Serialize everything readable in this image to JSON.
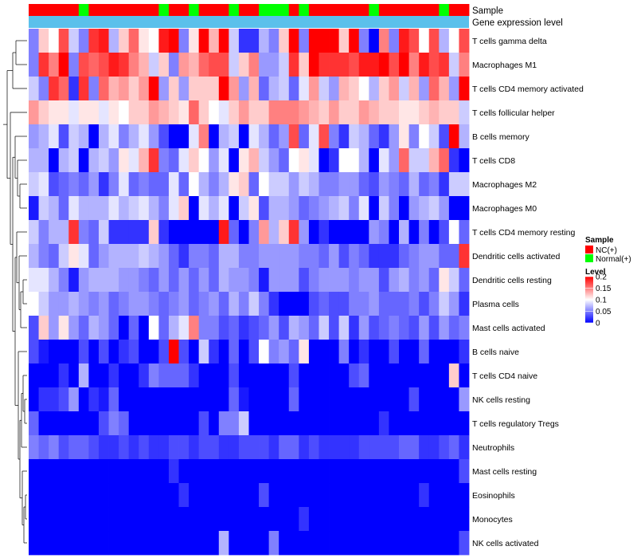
{
  "chart_data": {
    "type": "heatmap",
    "annotation_labels": {
      "sample": "Sample",
      "gene_expression": "Gene expression level"
    },
    "rows": [
      "T cells gamma delta",
      "Macrophages M1",
      "T cells CD4 memory activated",
      "T cells follicular helper",
      "B cells memory",
      "T cells CD8",
      "Macrophages M2",
      "Macrophages M0",
      "T cells CD4 memory resting",
      "Dendritic cells activated",
      "Dendritic cells resting",
      "Plasma cells",
      "Mast cells activated",
      "B cells naive",
      "T cells CD4 naive",
      "NK cells resting",
      "T cells regulatory  Tregs",
      "Neutrophils",
      "Mast cells resting",
      "Eosinophils",
      "Monocytes",
      "NK cells activated"
    ],
    "n_columns": 44,
    "sample_groups": [
      "NC",
      "NC",
      "NC",
      "NC",
      "NC",
      "Normal",
      "NC",
      "NC",
      "NC",
      "NC",
      "NC",
      "NC",
      "NC",
      "Normal",
      "NC",
      "NC",
      "Normal",
      "NC",
      "NC",
      "NC",
      "Normal",
      "NC",
      "NC",
      "Normal",
      "Normal",
      "Normal",
      "NC",
      "Normal",
      "NC",
      "NC",
      "NC",
      "NC",
      "NC",
      "NC",
      "Normal",
      "NC",
      "NC",
      "NC",
      "NC",
      "NC",
      "NC",
      "Normal",
      "NC",
      "NC"
    ],
    "legend": {
      "sample_title": "Sample",
      "sample_items": [
        {
          "label": "NC(+)",
          "color": "#ff0000"
        },
        {
          "label": "Normal(+)",
          "color": "#00ff00"
        }
      ],
      "level_title": "Level",
      "level_ticks": [
        {
          "label": "0.2",
          "value": 0.2
        },
        {
          "label": "0.15",
          "value": 0.15
        },
        {
          "label": "0.1",
          "value": 0.1
        },
        {
          "label": "0.05",
          "value": 0.05
        },
        {
          "label": "0",
          "value": 0
        }
      ]
    },
    "color_scale": {
      "low": "#0000ff",
      "mid": "#ffffff",
      "high": "#ff0000",
      "min": 0,
      "mid_value": 0.1,
      "max": 0.2
    },
    "annotation_colors": {
      "gene_expression": "#5bc0eb"
    },
    "values": [
      [
        0.05,
        0.12,
        0.1,
        0.17,
        0.08,
        0.05,
        0.18,
        0.19,
        0.07,
        0.12,
        0.16,
        0.11,
        0.1,
        0.19,
        0.2,
        0.05,
        0.11,
        0.2,
        0.13,
        0.2,
        0.08,
        0.02,
        0.02,
        0.07,
        0.05,
        0.12,
        0.2,
        0.05,
        0.2,
        0.2,
        0.2,
        0.12,
        0.2,
        0.05,
        0.0,
        0.15,
        0.05,
        0.19,
        0.17,
        0.1,
        0.17,
        0.07,
        0.1,
        0.17
      ],
      [
        0.05,
        0.18,
        0.15,
        0.2,
        0.05,
        0.17,
        0.16,
        0.17,
        0.19,
        0.18,
        0.15,
        0.13,
        0.08,
        0.12,
        0.05,
        0.14,
        0.13,
        0.16,
        0.17,
        0.17,
        0.08,
        0.12,
        0.15,
        0.06,
        0.06,
        0.08,
        0.18,
        0.12,
        0.2,
        0.18,
        0.18,
        0.18,
        0.17,
        0.19,
        0.19,
        0.2,
        0.17,
        0.2,
        0.15,
        0.19,
        0.17,
        0.18,
        0.08,
        0.15
      ],
      [
        0.08,
        0.05,
        0.18,
        0.16,
        0.02,
        0.18,
        0.05,
        0.16,
        0.13,
        0.14,
        0.12,
        0.14,
        0.2,
        0.06,
        0.12,
        0.06,
        0.12,
        0.12,
        0.12,
        0.2,
        0.14,
        0.06,
        0.13,
        0.04,
        0.07,
        0.08,
        0.04,
        0.09,
        0.14,
        0.08,
        0.06,
        0.13,
        0.12,
        0.1,
        0.07,
        0.12,
        0.14,
        0.08,
        0.13,
        0.06,
        0.16,
        0.13,
        0.06,
        0.2
      ],
      [
        0.14,
        0.12,
        0.11,
        0.11,
        0.09,
        0.11,
        0.11,
        0.09,
        0.11,
        0.1,
        0.12,
        0.12,
        0.14,
        0.13,
        0.12,
        0.11,
        0.16,
        0.12,
        0.1,
        0.09,
        0.12,
        0.14,
        0.12,
        0.12,
        0.15,
        0.15,
        0.15,
        0.14,
        0.13,
        0.12,
        0.14,
        0.12,
        0.12,
        0.14,
        0.13,
        0.12,
        0.12,
        0.11,
        0.11,
        0.12,
        0.13,
        0.12,
        0.12,
        0.08
      ],
      [
        0.06,
        0.07,
        0.09,
        0.03,
        0.08,
        0.07,
        0.0,
        0.07,
        0.09,
        0.05,
        0.07,
        0.09,
        0.06,
        0.03,
        0.0,
        0.0,
        0.09,
        0.15,
        0.0,
        0.07,
        0.08,
        0.0,
        0.09,
        0.07,
        0.04,
        0.06,
        0.17,
        0.04,
        0.09,
        0.17,
        0.05,
        0.02,
        0.08,
        0.07,
        0.04,
        0.02,
        0.06,
        0.11,
        0.05,
        0.1,
        0.08,
        0.03,
        0.2,
        0.07
      ],
      [
        0.07,
        0.07,
        0.0,
        0.07,
        0.08,
        0.0,
        0.07,
        0.08,
        0.06,
        0.11,
        0.09,
        0.13,
        0.18,
        0.05,
        0.04,
        0.09,
        0.12,
        0.1,
        0.06,
        0.09,
        0.0,
        0.11,
        0.13,
        0.08,
        0.06,
        0.04,
        0.1,
        0.11,
        0.09,
        0.0,
        0.02,
        0.1,
        0.1,
        0.07,
        0.0,
        0.09,
        0.06,
        0.16,
        0.08,
        0.08,
        0.13,
        0.16,
        0.02,
        0.0
      ],
      [
        0.08,
        0.09,
        0.03,
        0.04,
        0.05,
        0.04,
        0.06,
        0.02,
        0.05,
        0.09,
        0.04,
        0.05,
        0.04,
        0.04,
        0.09,
        0.04,
        0.1,
        0.07,
        0.05,
        0.07,
        0.11,
        0.12,
        0.04,
        0.1,
        0.08,
        0.08,
        0.06,
        0.08,
        0.07,
        0.05,
        0.05,
        0.06,
        0.06,
        0.04,
        0.03,
        0.06,
        0.05,
        0.04,
        0.07,
        0.04,
        0.05,
        0.02,
        0.08,
        0.08
      ],
      [
        0.01,
        0.08,
        0.07,
        0.04,
        0.09,
        0.07,
        0.07,
        0.07,
        0.09,
        0.07,
        0.08,
        0.09,
        0.07,
        0.05,
        0.09,
        0.12,
        0.0,
        0.09,
        0.07,
        0.09,
        0.0,
        0.08,
        0.11,
        0.03,
        0.07,
        0.07,
        0.06,
        0.04,
        0.05,
        0.06,
        0.07,
        0.08,
        0.05,
        0.09,
        0.0,
        0.08,
        0.05,
        0.0,
        0.06,
        0.07,
        0.08,
        0.06,
        0.0,
        0.0
      ],
      [
        0.08,
        0.05,
        0.07,
        0.07,
        0.18,
        0.05,
        0.04,
        0.08,
        0.02,
        0.02,
        0.02,
        0.02,
        0.12,
        0.02,
        0.0,
        0.0,
        0.0,
        0.0,
        0.0,
        0.19,
        0.04,
        0.0,
        0.05,
        0.14,
        0.07,
        0.12,
        0.18,
        0.06,
        0.0,
        0.02,
        0.0,
        0.0,
        0.0,
        0.0,
        0.06,
        0.05,
        0.0,
        0.07,
        0.0,
        0.05,
        0.0,
        0.03,
        0.1,
        0.04
      ],
      [
        0.07,
        0.05,
        0.04,
        0.08,
        0.11,
        0.09,
        0.04,
        0.06,
        0.07,
        0.07,
        0.07,
        0.08,
        0.07,
        0.06,
        0.04,
        0.02,
        0.05,
        0.05,
        0.04,
        0.07,
        0.07,
        0.05,
        0.05,
        0.06,
        0.06,
        0.06,
        0.06,
        0.05,
        0.05,
        0.04,
        0.06,
        0.03,
        0.05,
        0.04,
        0.02,
        0.02,
        0.02,
        0.04,
        0.05,
        0.06,
        0.06,
        0.04,
        0.04,
        0.18
      ],
      [
        0.09,
        0.09,
        0.07,
        0.05,
        0.01,
        0.06,
        0.07,
        0.07,
        0.07,
        0.06,
        0.06,
        0.05,
        0.04,
        0.06,
        0.04,
        0.06,
        0.04,
        0.06,
        0.04,
        0.07,
        0.06,
        0.06,
        0.05,
        0.01,
        0.06,
        0.06,
        0.06,
        0.03,
        0.05,
        0.06,
        0.06,
        0.06,
        0.05,
        0.06,
        0.06,
        0.03,
        0.06,
        0.07,
        0.05,
        0.06,
        0.04,
        0.11,
        0.08,
        0.04
      ],
      [
        0.1,
        0.08,
        0.06,
        0.06,
        0.07,
        0.06,
        0.05,
        0.06,
        0.04,
        0.05,
        0.06,
        0.06,
        0.05,
        0.04,
        0.05,
        0.06,
        0.04,
        0.05,
        0.06,
        0.04,
        0.07,
        0.05,
        0.08,
        0.05,
        0.02,
        0.0,
        0.0,
        0.0,
        0.03,
        0.04,
        0.03,
        0.03,
        0.05,
        0.05,
        0.06,
        0.04,
        0.04,
        0.04,
        0.05,
        0.03,
        0.05,
        0.08,
        0.06,
        0.02
      ],
      [
        0.03,
        0.12,
        0.06,
        0.11,
        0.06,
        0.04,
        0.07,
        0.06,
        0.04,
        0.0,
        0.04,
        0.0,
        0.1,
        0.04,
        0.07,
        0.09,
        0.15,
        0.05,
        0.05,
        0.03,
        0.04,
        0.02,
        0.03,
        0.04,
        0.06,
        0.03,
        0.07,
        0.06,
        0.04,
        0.08,
        0.03,
        0.08,
        0.02,
        0.06,
        0.03,
        0.04,
        0.05,
        0.04,
        0.03,
        0.06,
        0.03,
        0.06,
        0.04,
        0.05
      ],
      [
        0.03,
        0.01,
        0.0,
        0.0,
        0.0,
        0.03,
        0.0,
        0.03,
        0.0,
        0.02,
        0.03,
        0.0,
        0.0,
        0.03,
        0.2,
        0.03,
        0.0,
        0.08,
        0.02,
        0.0,
        0.04,
        0.0,
        0.03,
        0.1,
        0.05,
        0.06,
        0.04,
        0.11,
        0.0,
        0.0,
        0.0,
        0.05,
        0.0,
        0.02,
        0.0,
        0.0,
        0.03,
        0.0,
        0.0,
        0.04,
        0.0,
        0.0,
        0.0,
        0.02
      ],
      [
        0.0,
        0.0,
        0.0,
        0.02,
        0.0,
        0.07,
        0.0,
        0.0,
        0.02,
        0.0,
        0.0,
        0.02,
        0.05,
        0.04,
        0.04,
        0.04,
        0.02,
        0.0,
        0.0,
        0.0,
        0.03,
        0.0,
        0.0,
        0.0,
        0.0,
        0.0,
        0.03,
        0.0,
        0.0,
        0.0,
        0.0,
        0.0,
        0.03,
        0.04,
        0.0,
        0.0,
        0.0,
        0.0,
        0.0,
        0.0,
        0.0,
        0.0,
        0.12,
        0.0
      ],
      [
        0.0,
        0.02,
        0.02,
        0.03,
        0.06,
        0.0,
        0.02,
        0.01,
        0.04,
        0.0,
        0.0,
        0.0,
        0.0,
        0.0,
        0.0,
        0.0,
        0.0,
        0.0,
        0.0,
        0.0,
        0.04,
        0.01,
        0.0,
        0.0,
        0.0,
        0.0,
        0.04,
        0.0,
        0.0,
        0.0,
        0.0,
        0.0,
        0.0,
        0.0,
        0.0,
        0.0,
        0.0,
        0.0,
        0.03,
        0.0,
        0.0,
        0.0,
        0.0,
        0.06
      ],
      [
        0.04,
        0.0,
        0.0,
        0.0,
        0.0,
        0.0,
        0.0,
        0.03,
        0.05,
        0.04,
        0.0,
        0.0,
        0.0,
        0.0,
        0.0,
        0.0,
        0.0,
        0.03,
        0.0,
        0.05,
        0.05,
        0.08,
        0.0,
        0.0,
        0.0,
        0.0,
        0.0,
        0.0,
        0.0,
        0.0,
        0.0,
        0.0,
        0.0,
        0.0,
        0.0,
        0.02,
        0.0,
        0.0,
        0.0,
        0.0,
        0.0,
        0.0,
        0.0,
        0.0
      ],
      [
        0.05,
        0.04,
        0.05,
        0.03,
        0.04,
        0.04,
        0.03,
        0.02,
        0.02,
        0.03,
        0.02,
        0.03,
        0.02,
        0.02,
        0.03,
        0.03,
        0.02,
        0.03,
        0.03,
        0.02,
        0.02,
        0.03,
        0.03,
        0.03,
        0.02,
        0.04,
        0.04,
        0.02,
        0.03,
        0.02,
        0.02,
        0.02,
        0.02,
        0.03,
        0.03,
        0.03,
        0.03,
        0.04,
        0.04,
        0.02,
        0.02,
        0.03,
        0.04,
        0.02
      ],
      [
        0.0,
        0.0,
        0.0,
        0.0,
        0.0,
        0.0,
        0.0,
        0.0,
        0.0,
        0.0,
        0.0,
        0.0,
        0.0,
        0.0,
        0.02,
        0.0,
        0.0,
        0.0,
        0.0,
        0.0,
        0.0,
        0.0,
        0.0,
        0.0,
        0.0,
        0.0,
        0.0,
        0.0,
        0.0,
        0.0,
        0.0,
        0.0,
        0.0,
        0.0,
        0.0,
        0.0,
        0.0,
        0.0,
        0.0,
        0.0,
        0.0,
        0.0,
        0.0,
        0.03
      ],
      [
        0.0,
        0.0,
        0.0,
        0.0,
        0.0,
        0.0,
        0.0,
        0.0,
        0.0,
        0.0,
        0.0,
        0.0,
        0.0,
        0.0,
        0.0,
        0.02,
        0.0,
        0.0,
        0.0,
        0.0,
        0.0,
        0.0,
        0.0,
        0.03,
        0.0,
        0.0,
        0.0,
        0.0,
        0.0,
        0.0,
        0.0,
        0.0,
        0.0,
        0.0,
        0.0,
        0.0,
        0.0,
        0.0,
        0.0,
        0.02,
        0.0,
        0.0,
        0.0,
        0.0
      ],
      [
        0.0,
        0.0,
        0.0,
        0.0,
        0.0,
        0.0,
        0.0,
        0.0,
        0.0,
        0.0,
        0.0,
        0.0,
        0.0,
        0.0,
        0.0,
        0.0,
        0.0,
        0.0,
        0.0,
        0.0,
        0.0,
        0.0,
        0.0,
        0.0,
        0.0,
        0.0,
        0.0,
        0.02,
        0.0,
        0.0,
        0.0,
        0.0,
        0.0,
        0.0,
        0.0,
        0.0,
        0.0,
        0.0,
        0.0,
        0.0,
        0.0,
        0.0,
        0.0,
        0.0
      ],
      [
        0.0,
        0.0,
        0.0,
        0.0,
        0.0,
        0.0,
        0.0,
        0.0,
        0.0,
        0.0,
        0.0,
        0.0,
        0.0,
        0.0,
        0.0,
        0.0,
        0.0,
        0.0,
        0.0,
        0.07,
        0.0,
        0.0,
        0.0,
        0.0,
        0.05,
        0.0,
        0.0,
        0.0,
        0.0,
        0.0,
        0.0,
        0.0,
        0.0,
        0.0,
        0.0,
        0.0,
        0.0,
        0.0,
        0.0,
        0.0,
        0.0,
        0.0,
        0.0,
        0.03
      ]
    ]
  }
}
